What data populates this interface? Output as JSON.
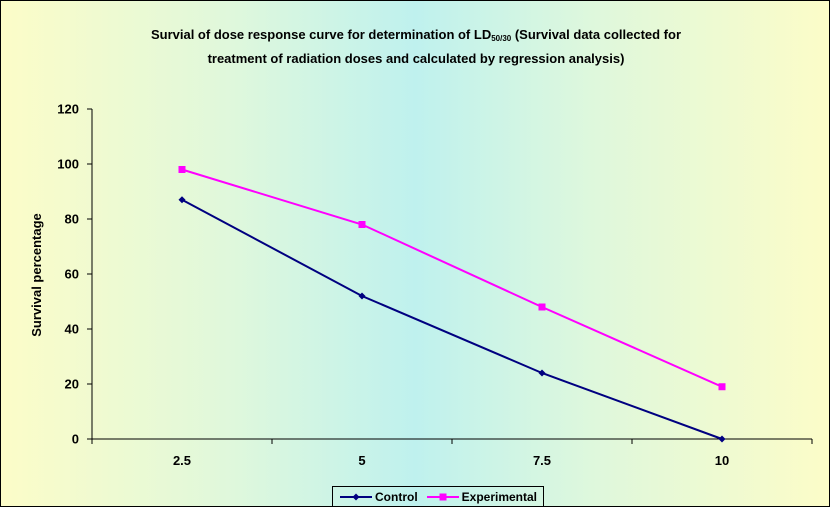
{
  "chart_data": {
    "type": "line",
    "title_main": "Survial of dose response curve for determination of LD",
    "title_sub": "50/30",
    "title_rest": " (Survival data collected for",
    "title_line2": "treatment of radiation doses and calculated by regression analysis)",
    "xlabel": "",
    "ylabel": "Survival percentage",
    "categories": [
      "2.5",
      "5",
      "7.5",
      "10"
    ],
    "ylim": [
      0,
      120
    ],
    "yticks": [
      "0",
      "20",
      "40",
      "60",
      "80",
      "100",
      "120"
    ],
    "grid": false,
    "legend_position": "bottom",
    "series": [
      {
        "name": "Control",
        "color": "#000080",
        "marker": "diamond",
        "values": [
          87,
          52,
          24,
          0
        ]
      },
      {
        "name": "Experimental",
        "color": "#ff00ff",
        "marker": "square",
        "values": [
          98,
          78,
          48,
          19
        ]
      }
    ]
  }
}
